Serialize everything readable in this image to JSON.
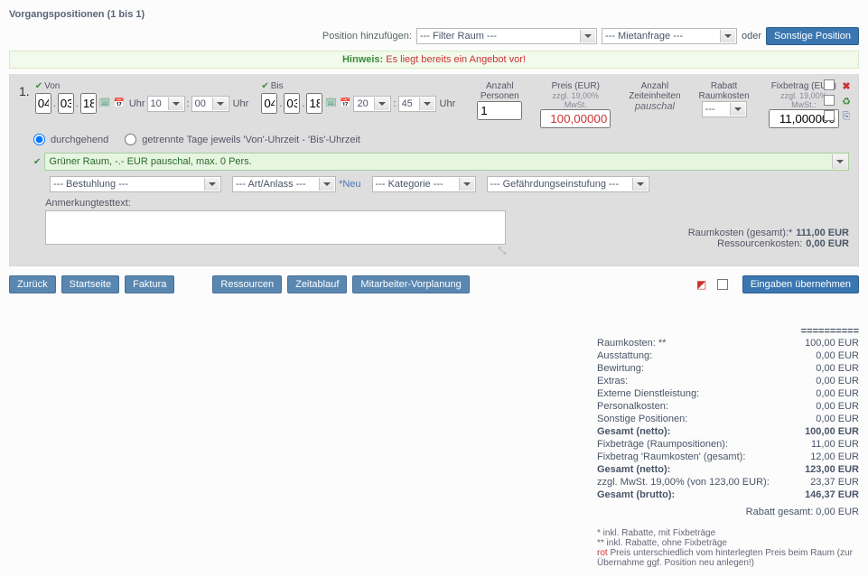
{
  "page": {
    "title": "Vorgangspositionen (1 bis 1)"
  },
  "addbar": {
    "label": "Position hinzufügen:",
    "filter_room": "--- Filter Raum ---",
    "request_type": "--- Mietanfrage ---",
    "or": "oder",
    "other_btn": "Sonstige Position"
  },
  "hint": {
    "label": "Hinweis:",
    "msg": "Es liegt bereits ein Angebot vor!"
  },
  "pos": {
    "number": "1.",
    "von_label": "Von",
    "bis_label": "Bis",
    "von": {
      "d": "04",
      "m": "03",
      "y": "18",
      "h": "10",
      "min": "00"
    },
    "bis": {
      "d": "04",
      "m": "03",
      "y": "18",
      "h": "20",
      "min": "45"
    },
    "uhr": "Uhr",
    "radio_durchgehend": "durchgehend",
    "radio_getrennt": "getrennte Tage jeweils 'Von'-Uhrzeit - 'Bis'-Uhrzeit",
    "cols": {
      "pers_label": "Anzahl\nPersonen",
      "pers_value": "1",
      "price_l1": "Preis (EUR)",
      "price_l2": "zzgl. 19,00% MwSt.",
      "price_value": "100,00000",
      "units_l1": "Anzahl",
      "units_l2": "Zeiteinheiten",
      "units_value": "pauschal",
      "rabatt_l1": "Rabatt",
      "rabatt_l2": "Raumkosten",
      "rabatt_value": "---",
      "fix_l1": "Fixbetrag (EUR)",
      "fix_l2": "zzgl. 19,00% MwSt.:",
      "fix_value": "11,000000"
    },
    "room_select": "Grüner Raum, -.- EUR pauschal, max. 0 Pers.",
    "seating": "--- Bestuhlung ---",
    "art": "--- Art/Anlass ---",
    "neu": "*Neu",
    "kategorie": "--- Kategorie ---",
    "geo": "--- Gefährdungseinstufung ---",
    "notes_label": "Anmerkungtesttext:",
    "totals": {
      "room_label": "Raumkosten (gesamt):*",
      "room_val": "111,00 EUR",
      "res_label": "Ressourcenkosten:",
      "res_val": "0,00 EUR"
    }
  },
  "actions": {
    "back": "Zurück",
    "home": "Startseite",
    "faktura": "Faktura",
    "ressourcen": "Ressourcen",
    "zeitablauf": "Zeitablauf",
    "mitarbeiter": "Mitarbeiter-Vorplanung",
    "submit": "Eingaben übernehmen"
  },
  "summary": {
    "ruler": "==========",
    "rows": [
      {
        "lbl": "Raumkosten: **",
        "val": "100,00 EUR",
        "bold": false
      },
      {
        "lbl": "Ausstattung:",
        "val": "0,00 EUR",
        "bold": false
      },
      {
        "lbl": "Bewirtung:",
        "val": "0,00 EUR",
        "bold": false
      },
      {
        "lbl": "Extras:",
        "val": "0,00 EUR",
        "bold": false
      },
      {
        "lbl": "Externe Dienstleistung:",
        "val": "0,00 EUR",
        "bold": false
      },
      {
        "lbl": "Personalkosten:",
        "val": "0,00 EUR",
        "bold": false
      },
      {
        "lbl": "Sonstige Positionen:",
        "val": "0,00 EUR",
        "bold": false
      },
      {
        "lbl": "Gesamt (netto):",
        "val": "100,00 EUR",
        "bold": true
      },
      {
        "lbl": "Fixbeträge (Raumpositionen):",
        "val": "11,00 EUR",
        "bold": false
      },
      {
        "lbl": "Fixbetrag 'Raumkosten' (gesamt):",
        "val": "12,00 EUR",
        "bold": false
      },
      {
        "lbl": "Gesamt (netto):",
        "val": "123,00 EUR",
        "bold": true
      },
      {
        "lbl": "zzgl. MwSt. 19,00% (von 123,00 EUR):",
        "val": "23,37 EUR",
        "bold": false
      },
      {
        "lbl": "Gesamt (brutto):",
        "val": "146,37 EUR",
        "bold": true
      }
    ],
    "rabatt_total": "Rabatt gesamt: 0,00 EUR"
  },
  "footnotes": {
    "a": "* inkl. Rabatte, mit Fixbeträge",
    "b": "** inkl. Rabatte, ohne Fixbeträge",
    "c_prefix": "rot",
    "c_rest": " Preis unterschiedlich vom hinterlegten Preis beim Raum (zur Übernahme ggf. Position neu anlegen!)"
  }
}
